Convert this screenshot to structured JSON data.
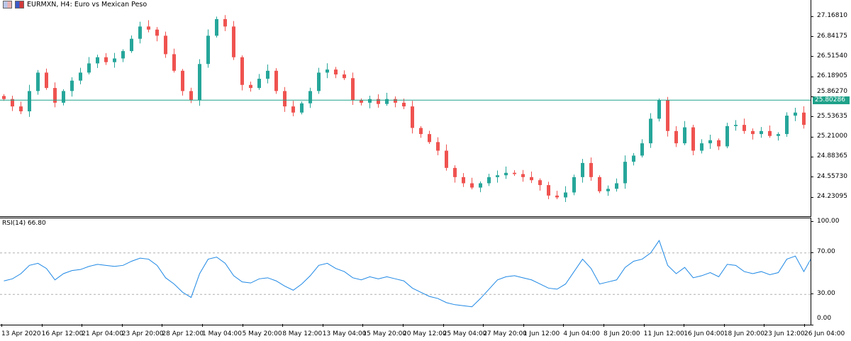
{
  "header": {
    "title": "EURMXN, H4:  Euro vs Mexican Peso",
    "icons": [
      "chart-window-icon",
      "symbol-icon"
    ]
  },
  "colors": {
    "bull": "#26a69a",
    "bear": "#ef5350",
    "current_price": "#1fa28a",
    "rsi_line": "#1e88e5",
    "level_line": "#b0b0b0"
  },
  "chart_data": [
    {
      "type": "candlestick",
      "symbol": "EURMXN",
      "timeframe": "H4",
      "price_ticks": [
        "27.16810",
        "26.84175",
        "26.51540",
        "26.18905",
        "25.86270",
        "25.53635",
        "25.21000",
        "24.88365",
        "24.55730",
        "24.23095"
      ],
      "ylim": [
        24.05,
        27.42
      ],
      "current_price": "25.80286",
      "closes": [
        25.82,
        25.7,
        25.62,
        25.95,
        26.25,
        26.0,
        25.76,
        25.95,
        26.12,
        26.25,
        26.4,
        26.5,
        26.42,
        26.48,
        26.6,
        26.8,
        27.0,
        26.95,
        26.85,
        26.55,
        26.28,
        25.95,
        25.8,
        26.39,
        26.85,
        27.12,
        27.0,
        26.5,
        26.05,
        26.0,
        26.15,
        26.28,
        25.95,
        25.7,
        25.6,
        25.75,
        25.95,
        26.25,
        26.3,
        26.22,
        26.16,
        25.8,
        25.76,
        25.82,
        25.74,
        25.82,
        25.76,
        25.7,
        25.35,
        25.25,
        25.12,
        24.98,
        24.7,
        24.55,
        24.45,
        24.38,
        24.45,
        24.55,
        24.58,
        24.62,
        24.6,
        24.55,
        24.5,
        24.42,
        24.25,
        24.22,
        24.3,
        24.55,
        24.78,
        24.55,
        24.32,
        24.36,
        24.45,
        24.8,
        24.9,
        25.1,
        25.5,
        25.8,
        25.3,
        25.1,
        25.36,
        24.98,
        25.1,
        25.15,
        25.05,
        25.38,
        25.4,
        25.3,
        25.25,
        25.3,
        25.22,
        25.25,
        25.55,
        25.6,
        25.4,
        25.8
      ],
      "time_labels": [
        "13 Apr 2020",
        "16 Apr 12:00",
        "21 Apr 04:00",
        "23 Apr 20:00",
        "28 Apr 12:00",
        "1 May 04:00",
        "5 May 20:00",
        "8 May 12:00",
        "13 May 04:00",
        "15 May 20:00",
        "20 May 12:00",
        "25 May 04:00",
        "27 May 20:00",
        "1 Jun 12:00",
        "4 Jun 04:00",
        "8 Jun 20:00",
        "11 Jun 12:00",
        "16 Jun 04:00",
        "18 Jun 20:00",
        "23 Jun 12:00",
        "26 Jun 04:00"
      ]
    },
    {
      "type": "line",
      "label": "RSI(14) 66.80",
      "ylim": [
        0,
        100
      ],
      "levels": [
        30,
        70
      ],
      "y_ticks": [
        "100.00",
        "70.00",
        "30.00",
        "0.00"
      ],
      "values": [
        43,
        45,
        50,
        58,
        60,
        55,
        44,
        50,
        53,
        54,
        57,
        59,
        58,
        57,
        58,
        62,
        65,
        64,
        58,
        46,
        40,
        32,
        27,
        50,
        64,
        66,
        60,
        48,
        42,
        41,
        45,
        46,
        43,
        38,
        34,
        40,
        48,
        58,
        60,
        55,
        52,
        46,
        44,
        47,
        45,
        47,
        45,
        43,
        36,
        32,
        28,
        26,
        22,
        20,
        19,
        18,
        26,
        35,
        44,
        47,
        48,
        46,
        44,
        40,
        36,
        35,
        40,
        52,
        64,
        55,
        40,
        42,
        44,
        56,
        62,
        64,
        70,
        82,
        58,
        50,
        56,
        46,
        48,
        51,
        47,
        59,
        58,
        52,
        50,
        52,
        49,
        51,
        64,
        67,
        52,
        66.8
      ]
    }
  ]
}
